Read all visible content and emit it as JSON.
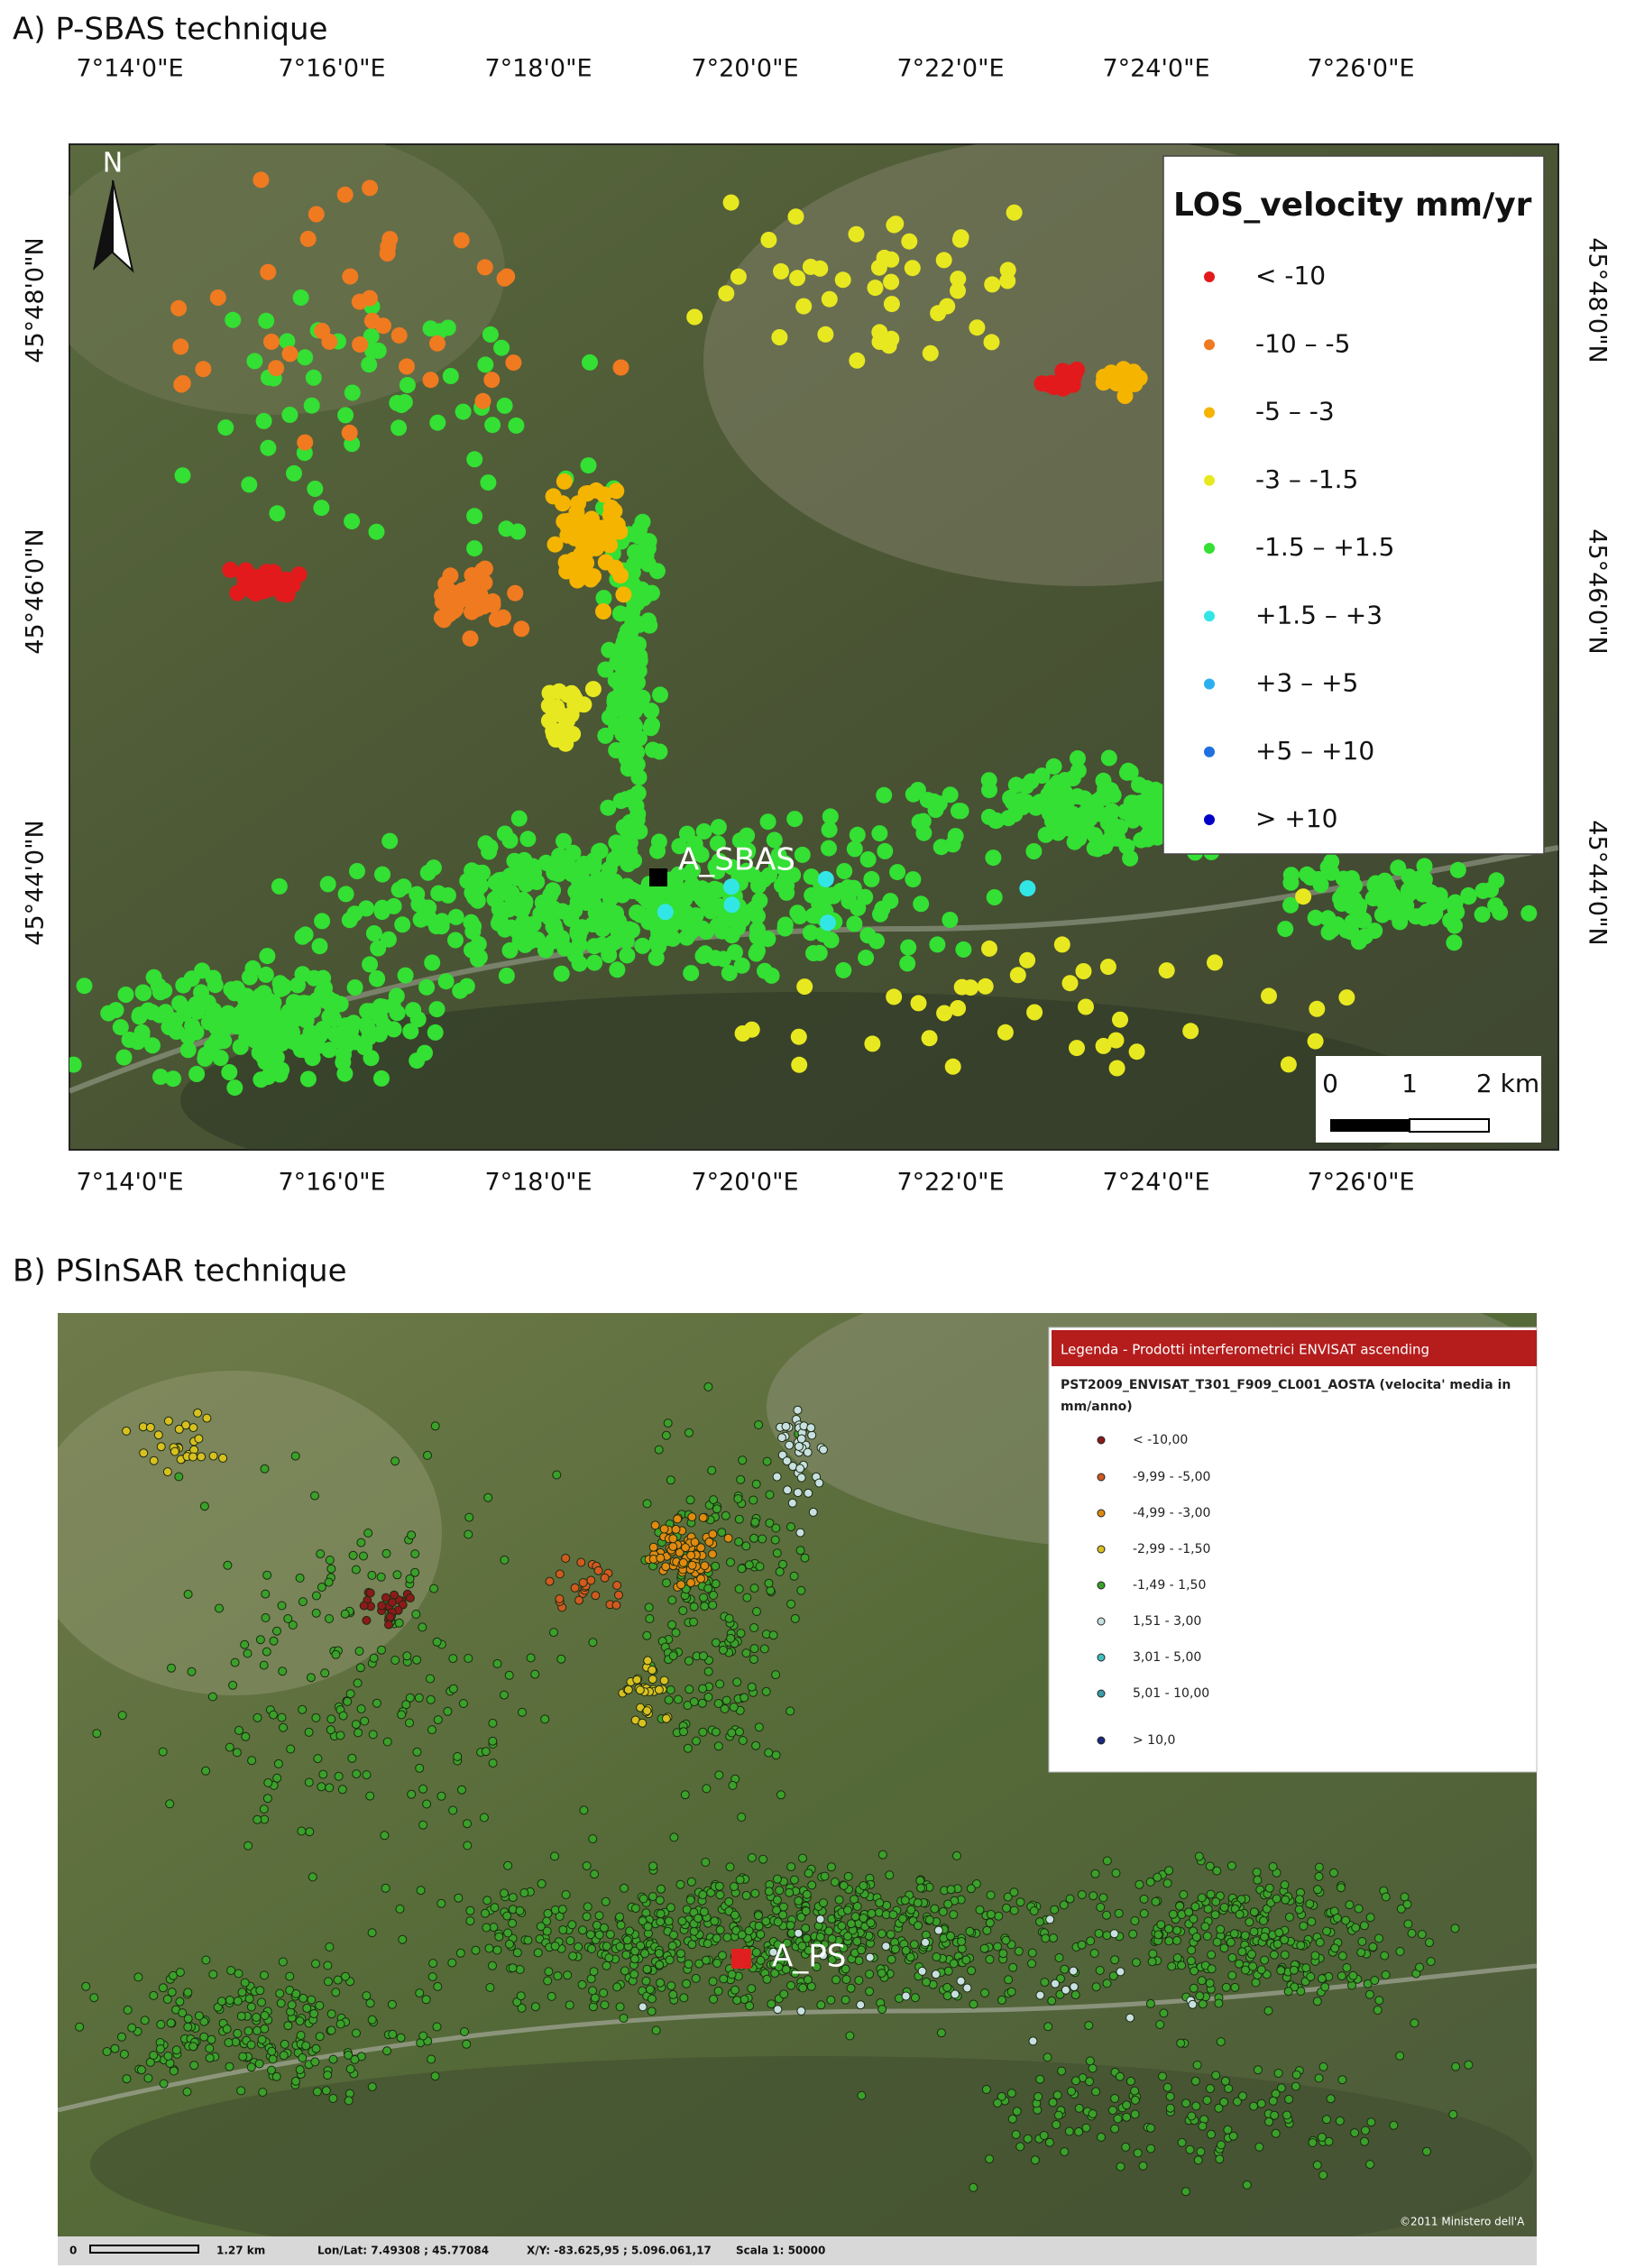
{
  "panel_a": {
    "title": "A) P-SBAS technique",
    "top_lon_labels": [
      "7°14'0\"E",
      "7°16'0\"E",
      "7°18'0\"E",
      "7°20'0\"E",
      "7°22'0\"E",
      "7°24'0\"E",
      "7°26'0\"E"
    ],
    "bottom_lon_labels": [
      "7°14'0\"E",
      "7°16'0\"E",
      "7°18'0\"E",
      "7°20'0\"E",
      "7°22'0\"E",
      "7°24'0\"E",
      "7°26'0\"E"
    ],
    "left_lat_labels": [
      "45°48'0\"N",
      "45°46'0\"N",
      "45°44'0\"N"
    ],
    "right_lat_labels": [
      "45°48'0\"N",
      "45°46'0\"N",
      "45°44'0\"N"
    ],
    "north": "N",
    "legend": {
      "title": "LOS_velocity mm/yr",
      "items": [
        {
          "label": "< -10",
          "color": "#e31a1c"
        },
        {
          "label": "-10 – -5",
          "color": "#f07a20"
        },
        {
          "label": "-5 – -3",
          "color": "#f5b400"
        },
        {
          "label": "-3 – -1.5",
          "color": "#e8e820"
        },
        {
          "label": "-1.5 – +1.5",
          "color": "#33e033"
        },
        {
          "label": "+1.5 – +3",
          "color": "#33e6e6"
        },
        {
          "label": "+3 – +5",
          "color": "#2ab0f0"
        },
        {
          "label": "+5 – +10",
          "color": "#2070e0"
        },
        {
          "label": "> +10",
          "color": "#0000c8"
        }
      ]
    },
    "point_label": "A_SBAS",
    "scale_bar": [
      "0",
      "1",
      "2 km"
    ]
  },
  "panel_b": {
    "title": "B) PSInSAR technique",
    "legend": {
      "header": "Legenda - Prodotti interferometrici ENVISAT ascending",
      "layer_name_lines": [
        "PST2009_ENVISAT_T301_F909_CL001_AOSTA (velocita' media in",
        "mm/anno)"
      ],
      "items": [
        {
          "label": "< -10,00",
          "color": "#8b1a1a"
        },
        {
          "label": "-9,99 - -5,00",
          "color": "#d05a20"
        },
        {
          "label": "-4,99 - -3,00",
          "color": "#e08a10"
        },
        {
          "label": "-2,99 - -1,50",
          "color": "#d8c020"
        },
        {
          "label": "-1,49 - 1,50",
          "color": "#3aa02a"
        },
        {
          "label": "1,51 - 3,00",
          "color": "#c8e0e0"
        },
        {
          "label": "3,01 - 5,00",
          "color": "#40c0c0"
        },
        {
          "label": "5,01 - 10,00",
          "color": "#3a9aa8"
        },
        {
          "label": "> 10,0",
          "color": "#1a2a80"
        }
      ]
    },
    "point_label": "A_PS",
    "status_bar": [
      "0",
      "1.27 km",
      "Lon/Lat: 7.49308 ; 45.77084",
      "X/Y: -83.625,95 ; 5.096.061,17",
      "Scala 1: 50000"
    ],
    "copyright": "©2011 Ministero dell'A"
  }
}
